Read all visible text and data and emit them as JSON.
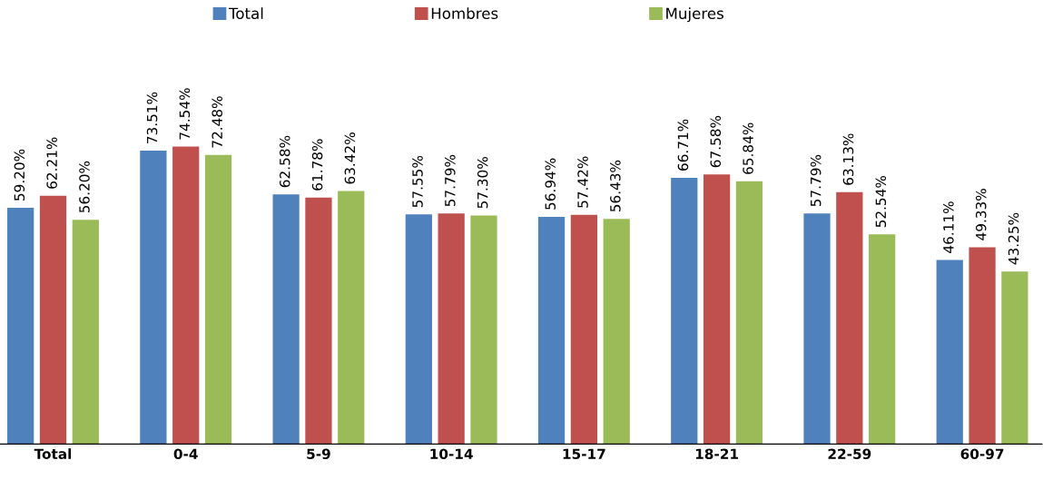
{
  "chart_data": {
    "type": "bar",
    "categories": [
      "Total",
      "0-4",
      "5-9",
      "10-14",
      "15-17",
      "18-21",
      "22-59",
      "60-97"
    ],
    "series": [
      {
        "name": "Total",
        "color": "#4f81bd",
        "values": [
          59.2,
          73.51,
          62.58,
          57.55,
          56.94,
          66.71,
          57.79,
          46.11
        ],
        "value_labels": [
          "59.20%",
          "73.51%",
          "62.58%",
          "57.55%",
          "56.94%",
          "66.71%",
          "57.79%",
          "46.11%"
        ]
      },
      {
        "name": "Hombres",
        "color": "#c0504d",
        "values": [
          62.21,
          74.54,
          61.78,
          57.79,
          57.42,
          67.58,
          63.13,
          49.33
        ],
        "value_labels": [
          "62.21%",
          "74.54%",
          "61.78%",
          "57.79%",
          "57.42%",
          "67.58%",
          "63.13%",
          "49.33%"
        ]
      },
      {
        "name": "Mujeres",
        "color": "#9bbb59",
        "values": [
          56.2,
          72.48,
          63.42,
          57.3,
          56.43,
          65.84,
          52.54,
          43.25
        ],
        "value_labels": [
          "56.20%",
          "72.48%",
          "63.42%",
          "57.30%",
          "56.43%",
          "65.84%",
          "52.54%",
          "43.25%"
        ]
      }
    ],
    "legend": "top",
    "grid": false
  }
}
